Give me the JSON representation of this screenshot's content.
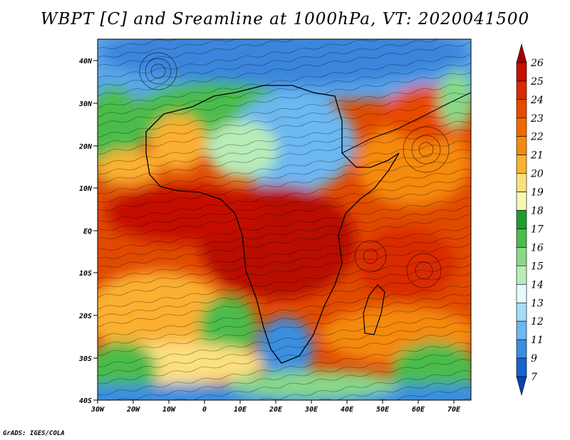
{
  "title": "WBPT [C] and Sreamline at 1000hPa, VT: 2020041500",
  "footer": "GrADS: IGES/COLA",
  "map": {
    "lat_labels": [
      "40N",
      "30N",
      "20N",
      "10N",
      "EQ",
      "10S",
      "20S",
      "30S",
      "40S"
    ],
    "lon_labels": [
      "30W",
      "20W",
      "10W",
      "0",
      "10E",
      "20E",
      "30E",
      "40E",
      "50E",
      "60E",
      "70E"
    ],
    "lon_range": [
      -30,
      75
    ],
    "lat_range": [
      -40,
      45
    ]
  },
  "colorbar": {
    "labels": [
      "26",
      "25",
      "24",
      "23",
      "22",
      "21",
      "20",
      "19",
      "18",
      "17",
      "16",
      "15",
      "14",
      "13",
      "12",
      "11",
      "9",
      "7"
    ],
    "colors": [
      "#a50000",
      "#c41000",
      "#d92a00",
      "#e84a00",
      "#f06a00",
      "#f58a10",
      "#fbb030",
      "#fce080",
      "#f7f7b0",
      "#1f9e2e",
      "#4cbc4c",
      "#88d888",
      "#b8ecb8",
      "#e6fbff",
      "#a6dcf7",
      "#6cb8f0",
      "#3b8ee0",
      "#1862d0",
      "#0b42b8"
    ]
  }
}
